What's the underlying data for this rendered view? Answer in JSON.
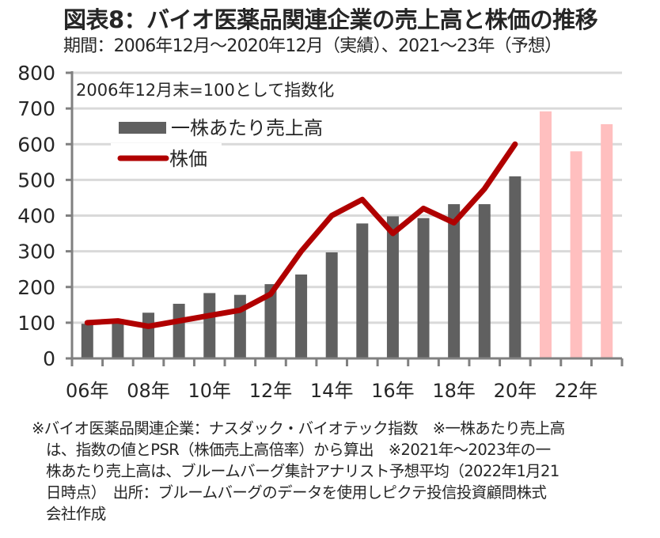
{
  "header": {
    "title": "図表8：バイオ医薬品関連企業の売上高と株価の推移",
    "subtitle": "期間：2006年12月～2020年12月（実績）、2021～23年（予想）"
  },
  "chart_data": {
    "type": "bar",
    "title": "図表8：バイオ医薬品関連企業の売上高と株価の推移",
    "subtitle": "期間：2006年12月～2020年12月（実績）、2021～23年（予想）",
    "annotation": "2006年12月末=100として指数化",
    "xlabel": "",
    "ylabel": "",
    "ylim": [
      0,
      800
    ],
    "yticks": [
      0,
      100,
      200,
      300,
      400,
      500,
      600,
      700,
      800
    ],
    "grid": true,
    "legend_position": "top-left",
    "categories": [
      "2006",
      "2007",
      "2008",
      "2009",
      "2010",
      "2011",
      "2012",
      "2013",
      "2014",
      "2015",
      "2016",
      "2017",
      "2018",
      "2019",
      "2020",
      "2021",
      "2022",
      "2023"
    ],
    "xtick_labels": [
      {
        "category": "2006",
        "label": "06年"
      },
      {
        "category": "2008",
        "label": "08年"
      },
      {
        "category": "2010",
        "label": "10年"
      },
      {
        "category": "2012",
        "label": "12年"
      },
      {
        "category": "2014",
        "label": "14年"
      },
      {
        "category": "2016",
        "label": "16年"
      },
      {
        "category": "2018",
        "label": "18年"
      },
      {
        "category": "2020",
        "label": "20年"
      },
      {
        "category": "2022",
        "label": "22年"
      }
    ],
    "series": [
      {
        "name": "一株あたり売上高",
        "type": "bar",
        "color": "#606060",
        "forecast_color": "#ffbfbf",
        "values": [
          97,
          110,
          128,
          153,
          183,
          178,
          208,
          235,
          297,
          378,
          398,
          393,
          432,
          432,
          510,
          692,
          580,
          656
        ],
        "forecast_from": "2021"
      },
      {
        "name": "株価",
        "type": "line",
        "color": "#b00000",
        "values": [
          100,
          105,
          90,
          105,
          120,
          135,
          180,
          300,
          400,
          445,
          350,
          420,
          380,
          475,
          600,
          null,
          null,
          null
        ]
      }
    ]
  },
  "footnote": {
    "lines": [
      "※バイオ医薬品関連企業：ナスダック・バイオテック指数　※一株あたり売上高",
      "は、指数の値とPSR（株価売上高倍率）から算出　※2021年～2023年の一",
      "株あたり売上高は、ブルームバーグ集計アナリスト予想平均（2022年1月21",
      "日時点）　出所：ブルームバーグのデータを使用しピクテ投信投資顧問株式",
      "会社作成"
    ]
  }
}
